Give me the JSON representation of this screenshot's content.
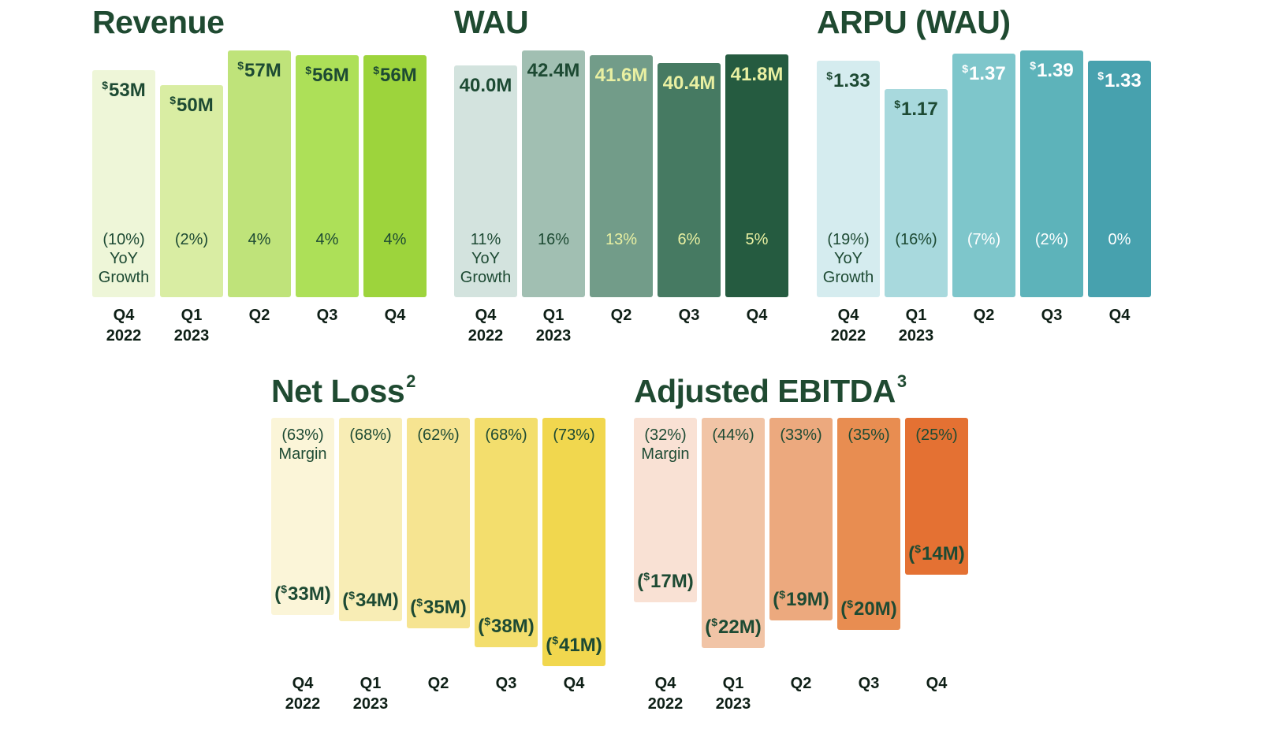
{
  "chart_data": [
    {
      "type": "bar",
      "title": "Revenue",
      "title_sup": "",
      "categories": [
        "Q4\n2022",
        "Q1\n2023",
        "Q2",
        "Q3",
        "Q4"
      ],
      "values": [
        53,
        50,
        57,
        56,
        56
      ],
      "value_unit": "M",
      "value_labels": [
        {
          "prefix": "",
          "currency": "$",
          "text": "53M",
          "suffix": ""
        },
        {
          "prefix": "",
          "currency": "$",
          "text": "50M",
          "suffix": ""
        },
        {
          "prefix": "",
          "currency": "$",
          "text": "57M",
          "suffix": ""
        },
        {
          "prefix": "",
          "currency": "$",
          "text": "56M",
          "suffix": ""
        },
        {
          "prefix": "",
          "currency": "$",
          "text": "56M",
          "suffix": ""
        }
      ],
      "annotations": [
        "(10%)\nYoY\nGrowth",
        "(2%)",
        "4%",
        "4%",
        "4%"
      ],
      "ylim": [
        0,
        57
      ],
      "direction": "up",
      "colors": [
        "#eef6d8",
        "#d9eda3",
        "#bfe37a",
        "#ade058",
        "#9dd43c"
      ],
      "value_colors": [
        "#1d4a33",
        "#1d4a33",
        "#1d4a33",
        "#1d4a33",
        "#1d4a33"
      ],
      "annotation_colors": [
        "#1d4a33",
        "#1d4a33",
        "#1d4a33",
        "#1d4a33",
        "#1d4a33"
      ]
    },
    {
      "type": "bar",
      "title": "WAU",
      "title_sup": "",
      "categories": [
        "Q4\n2022",
        "Q1\n2023",
        "Q2",
        "Q3",
        "Q4"
      ],
      "values": [
        40.0,
        42.4,
        41.6,
        40.4,
        41.8
      ],
      "value_unit": "M",
      "value_labels": [
        {
          "prefix": "",
          "currency": "",
          "text": "40.0M",
          "suffix": ""
        },
        {
          "prefix": "",
          "currency": "",
          "text": "42.4M",
          "suffix": ""
        },
        {
          "prefix": "",
          "currency": "",
          "text": "41.6M",
          "suffix": ""
        },
        {
          "prefix": "",
          "currency": "",
          "text": "40.4M",
          "suffix": ""
        },
        {
          "prefix": "",
          "currency": "",
          "text": "41.8M",
          "suffix": ""
        }
      ],
      "annotations": [
        "11%\nYoY\nGrowth",
        "16%",
        "13%",
        "6%",
        "5%"
      ],
      "ylim": [
        0,
        42.4
      ],
      "direction": "up",
      "colors": [
        "#d3e3de",
        "#a1bfb2",
        "#729c89",
        "#467a62",
        "#255b40"
      ],
      "value_colors": [
        "#1d4a33",
        "#1d4a33",
        "#e9f0a2",
        "#e9f0a2",
        "#e9f0a2"
      ],
      "annotation_colors": [
        "#1d4a33",
        "#1d4a33",
        "#e9f0a2",
        "#e9f0a2",
        "#e9f0a2"
      ]
    },
    {
      "type": "bar",
      "title": "ARPU (WAU)",
      "title_sup": "",
      "categories": [
        "Q4\n2022",
        "Q1\n2023",
        "Q2",
        "Q3",
        "Q4"
      ],
      "values": [
        1.33,
        1.17,
        1.37,
        1.39,
        1.33
      ],
      "value_unit": "$",
      "value_labels": [
        {
          "prefix": "",
          "currency": "$",
          "text": "1.33",
          "suffix": ""
        },
        {
          "prefix": "",
          "currency": "$",
          "text": "1.17",
          "suffix": ""
        },
        {
          "prefix": "",
          "currency": "$",
          "text": "1.37",
          "suffix": ""
        },
        {
          "prefix": "",
          "currency": "$",
          "text": "1.39",
          "suffix": ""
        },
        {
          "prefix": "",
          "currency": "$",
          "text": "1.33",
          "suffix": ""
        }
      ],
      "annotations": [
        "(19%)\nYoY\nGrowth",
        "(16%)",
        "(7%)",
        "(2%)",
        "0%"
      ],
      "ylim": [
        0,
        1.39
      ],
      "direction": "up",
      "colors": [
        "#d5ecef",
        "#a8d9dd",
        "#7ec6cb",
        "#5db3ba",
        "#47a1ae"
      ],
      "value_colors": [
        "#1d4a33",
        "#1d4a33",
        "#ffffff",
        "#ffffff",
        "#ffffff"
      ],
      "annotation_colors": [
        "#1d4a33",
        "#1d4a33",
        "#ffffff",
        "#ffffff",
        "#ffffff"
      ]
    },
    {
      "type": "bar",
      "title": "Net Loss",
      "title_sup": "2",
      "categories": [
        "Q4\n2022",
        "Q1\n2023",
        "Q2",
        "Q3",
        "Q4"
      ],
      "values": [
        -33,
        -34,
        -35,
        -38,
        -41
      ],
      "value_unit": "M",
      "value_labels": [
        {
          "prefix": "(",
          "currency": "$",
          "text": "33M",
          "suffix": ")"
        },
        {
          "prefix": "(",
          "currency": "$",
          "text": "34M",
          "suffix": ")"
        },
        {
          "prefix": "(",
          "currency": "$",
          "text": "35M",
          "suffix": ")"
        },
        {
          "prefix": "(",
          "currency": "$",
          "text": "38M",
          "suffix": ")"
        },
        {
          "prefix": "(",
          "currency": "$",
          "text": "41M",
          "suffix": ")"
        }
      ],
      "annotations": [
        "(63%)\nMargin",
        "(68%)",
        "(62%)",
        "(68%)",
        "(73%)"
      ],
      "ylim": [
        -41,
        0
      ],
      "direction": "down",
      "colors": [
        "#fbf5d8",
        "#f8edb5",
        "#f6e491",
        "#f3de6d",
        "#f1d74e"
      ],
      "value_colors": [
        "#1d4a33",
        "#1d4a33",
        "#1d4a33",
        "#1d4a33",
        "#1d4a33"
      ],
      "annotation_colors": [
        "#1d4a33",
        "#1d4a33",
        "#1d4a33",
        "#1d4a33",
        "#1d4a33"
      ]
    },
    {
      "type": "bar",
      "title": "Adjusted EBITDA",
      "title_sup": "3",
      "categories": [
        "Q4\n2022",
        "Q1\n2023",
        "Q2",
        "Q3",
        "Q4"
      ],
      "values": [
        -17,
        -22,
        -19,
        -20,
        -14
      ],
      "value_unit": "M",
      "value_labels": [
        {
          "prefix": "(",
          "currency": "$",
          "text": "17M",
          "suffix": ")"
        },
        {
          "prefix": "(",
          "currency": "$",
          "text": "22M",
          "suffix": ")"
        },
        {
          "prefix": "(",
          "currency": "$",
          "text": "19M",
          "suffix": ")"
        },
        {
          "prefix": "(",
          "currency": "$",
          "text": "20M",
          "suffix": ")"
        },
        {
          "prefix": "(",
          "currency": "$",
          "text": "14M",
          "suffix": ")"
        }
      ],
      "annotations": [
        "(32%)\nMargin",
        "(44%)",
        "(33%)",
        "(35%)",
        "(25%)"
      ],
      "ylim": [
        -22,
        0
      ],
      "direction": "down",
      "colors": [
        "#f9e1d4",
        "#f1c4a6",
        "#eca97e",
        "#e88d51",
        "#e47133"
      ],
      "value_colors": [
        "#1d4a33",
        "#1d4a33",
        "#1d4a33",
        "#1d4a33",
        "#1d4a33"
      ],
      "annotation_colors": [
        "#1d4a33",
        "#1d4a33",
        "#1d4a33",
        "#1d4a33",
        "#1d4a33"
      ]
    }
  ]
}
